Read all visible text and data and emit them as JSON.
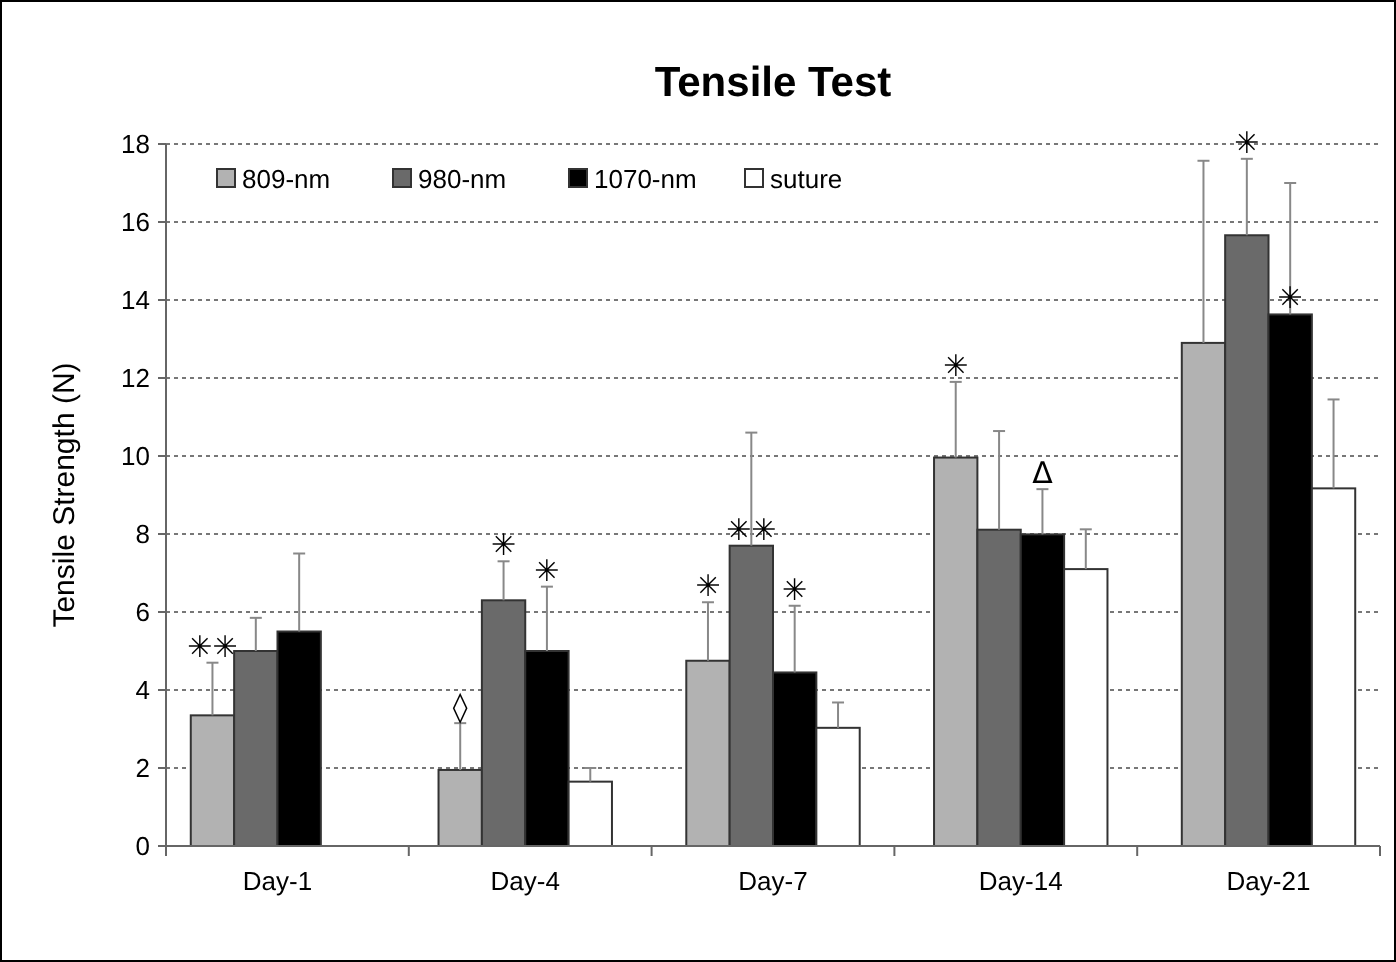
{
  "chart_data": {
    "type": "bar",
    "title": "Tensile Test",
    "ylabel": "Tensile Strength (N)",
    "categories": [
      "Day-1",
      "Day-4",
      "Day-7",
      "Day-14",
      "Day-21"
    ],
    "series": [
      {
        "name": "809-nm",
        "color": "#b2b2b2",
        "values": [
          3.35,
          1.95,
          4.75,
          9.96,
          12.9
        ],
        "errors": [
          [
            3.35,
            4.7
          ],
          [
            1.95,
            3.15
          ],
          [
            4.75,
            6.25
          ],
          [
            9.96,
            11.9
          ],
          [
            12.9,
            17.57
          ]
        ],
        "value_labels": [
          "✳✳",
          "◊",
          "✳",
          "✳",
          null
        ]
      },
      {
        "name": "980-nm",
        "color": "#6a6a6a",
        "values": [
          5.0,
          6.3,
          7.7,
          8.11,
          15.66
        ],
        "errors": [
          [
            5.0,
            5.85
          ],
          [
            6.3,
            7.3
          ],
          [
            7.7,
            10.6
          ],
          [
            8.11,
            10.64
          ],
          [
            15.66,
            17.62
          ]
        ],
        "value_labels": [
          null,
          "✳",
          "✳✳",
          null,
          "✳"
        ]
      },
      {
        "name": "1070-nm",
        "color": "#000000",
        "values": [
          5.5,
          5.0,
          4.45,
          7.99,
          13.63
        ],
        "errors": [
          [
            5.5,
            7.5
          ],
          [
            5.0,
            6.65
          ],
          [
            4.45,
            6.16
          ],
          [
            7.99,
            9.15
          ],
          [
            13.63,
            17.0
          ]
        ],
        "value_labels": [
          null,
          "✳",
          "✳",
          "Δ",
          "✳"
        ]
      },
      {
        "name": "suture",
        "color": "#ffffff",
        "values": [
          null,
          1.65,
          3.03,
          7.1,
          9.17
        ],
        "errors": [
          null,
          [
            1.65,
            2.0
          ],
          [
            3.03,
            3.68
          ],
          [
            7.1,
            8.12
          ],
          [
            9.17,
            11.45
          ]
        ]
      }
    ],
    "ylim": [
      0,
      18
    ],
    "yticks": [
      0,
      2,
      4,
      6,
      8,
      10,
      12,
      14,
      16,
      18
    ],
    "grid": "y",
    "legend": "top left"
  }
}
